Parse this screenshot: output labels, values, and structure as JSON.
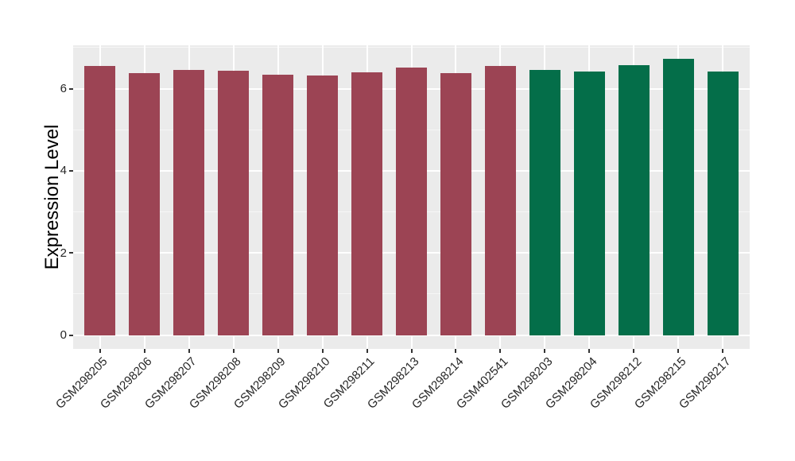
{
  "chart_data": {
    "type": "bar",
    "title": "",
    "xlabel": "",
    "ylabel": "Expression Level",
    "yticks": [
      0,
      2,
      4,
      6
    ],
    "yticks_minor": [
      1,
      3,
      5,
      7
    ],
    "ylim": [
      -0.336,
      7.056
    ],
    "grid": "on",
    "legend_position": "none",
    "panel_background": "#EBEBEB",
    "grid_color": "#FFFFFF",
    "tick_color": "#333333",
    "text_color": "#262626",
    "group_colors": {
      "group1": "#9C4454",
      "group2": "#046E49"
    },
    "categories": [
      "GSM298205",
      "GSM298206",
      "GSM298207",
      "GSM298208",
      "GSM298209",
      "GSM298210",
      "GSM298211",
      "GSM298213",
      "GSM298214",
      "GSM402541",
      "GSM298203",
      "GSM298204",
      "GSM298212",
      "GSM298215",
      "GSM298217"
    ],
    "bars": [
      {
        "label": "GSM298205",
        "value": 6.56,
        "group": "group1"
      },
      {
        "label": "GSM298206",
        "value": 6.38,
        "group": "group1"
      },
      {
        "label": "GSM298207",
        "value": 6.45,
        "group": "group1"
      },
      {
        "label": "GSM298208",
        "value": 6.43,
        "group": "group1"
      },
      {
        "label": "GSM298209",
        "value": 6.34,
        "group": "group1"
      },
      {
        "label": "GSM298210",
        "value": 6.32,
        "group": "group1"
      },
      {
        "label": "GSM298211",
        "value": 6.39,
        "group": "group1"
      },
      {
        "label": "GSM298213",
        "value": 6.52,
        "group": "group1"
      },
      {
        "label": "GSM298214",
        "value": 6.37,
        "group": "group1"
      },
      {
        "label": "GSM402541",
        "value": 6.55,
        "group": "group1"
      },
      {
        "label": "GSM298203",
        "value": 6.46,
        "group": "group2"
      },
      {
        "label": "GSM298204",
        "value": 6.42,
        "group": "group2"
      },
      {
        "label": "GSM298212",
        "value": 6.57,
        "group": "group2"
      },
      {
        "label": "GSM298215",
        "value": 6.72,
        "group": "group2"
      },
      {
        "label": "GSM298217",
        "value": 6.41,
        "group": "group2"
      }
    ]
  }
}
